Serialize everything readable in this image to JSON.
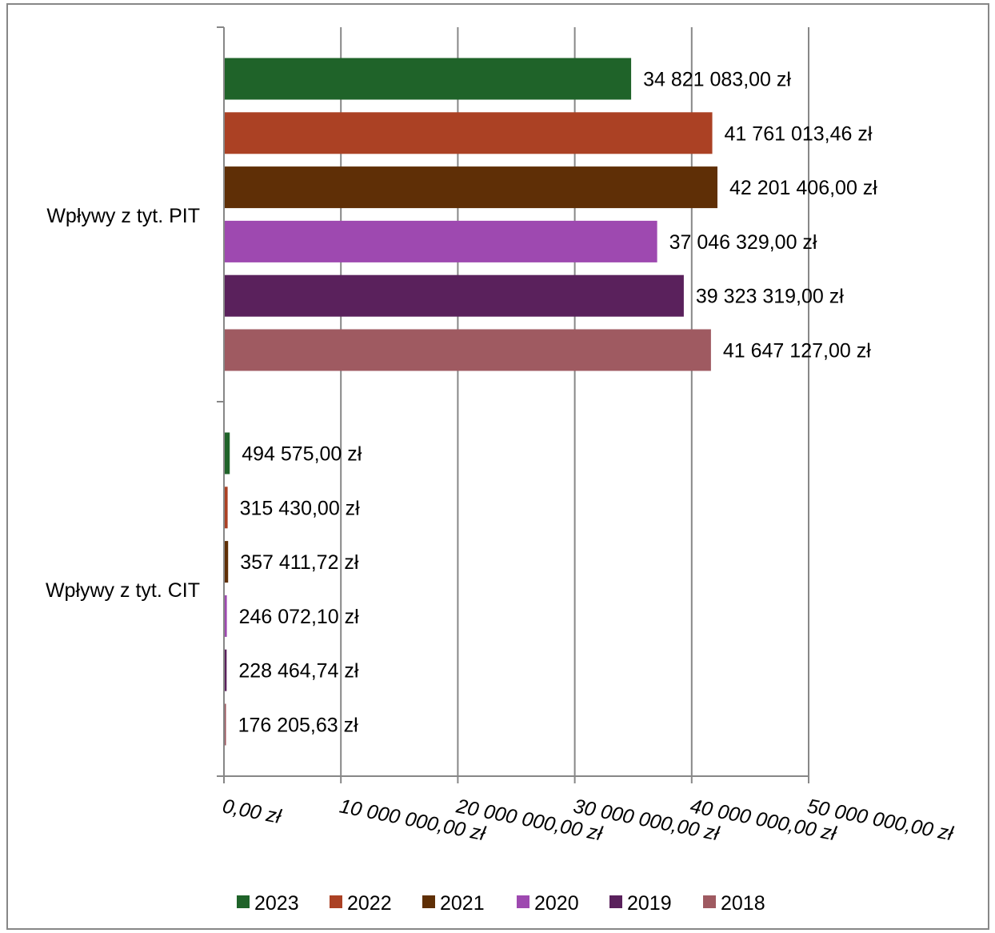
{
  "chart_data": {
    "type": "bar",
    "orientation": "horizontal",
    "categories": [
      "Wpływy z tyt. PIT",
      "Wpływy z tyt. CIT"
    ],
    "series": [
      {
        "name": "2023",
        "color": "#1f6329",
        "values": [
          34821083.0,
          494575.0
        ],
        "labels": [
          "34 821 083,00 zł",
          "494 575,00 zł"
        ]
      },
      {
        "name": "2022",
        "color": "#ab4124",
        "values": [
          41761013.46,
          315430.0
        ],
        "labels": [
          "41 761 013,46 zł",
          "315 430,00 zł"
        ]
      },
      {
        "name": "2021",
        "color": "#5f2f06",
        "values": [
          42201406.0,
          357411.72
        ],
        "labels": [
          "42 201 406,00 zł",
          "357 411,72 zł"
        ]
      },
      {
        "name": "2020",
        "color": "#9e49b0",
        "values": [
          37046329.0,
          246072.1
        ],
        "labels": [
          "37 046 329,00 zł",
          "246 072,10 zł"
        ]
      },
      {
        "name": "2019",
        "color": "#5a215c",
        "values": [
          39323319.0,
          228464.74
        ],
        "labels": [
          "39 323 319,00 zł",
          "228 464,74 zł"
        ]
      },
      {
        "name": "2018",
        "color": "#9f5a61",
        "values": [
          41647127.0,
          176205.63
        ],
        "labels": [
          "41 647 127,00 zł",
          "176 205,63 zł"
        ]
      }
    ],
    "xlim": [
      0,
      50000000
    ],
    "x_ticks": [
      0,
      10000000,
      20000000,
      30000000,
      40000000,
      50000000
    ],
    "x_tick_labels": [
      "0,00 zł",
      "10 000 000,00 zł",
      "20 000 000,00 zł",
      "30 000 000,00 zł",
      "40 000 000,00 zł",
      "50 000 000,00 zł"
    ],
    "grid": "vertical major gridlines",
    "legend": "bottom",
    "title": "",
    "xlabel": "",
    "ylabel": ""
  }
}
